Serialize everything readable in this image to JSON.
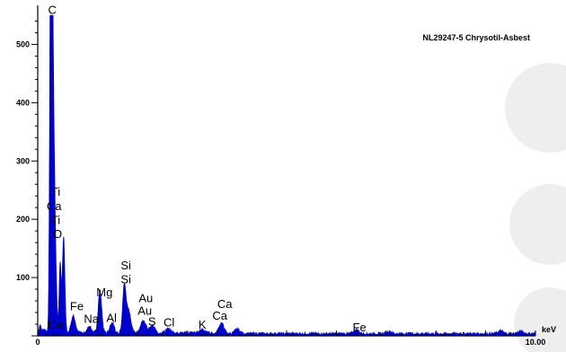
{
  "colors": {
    "spectrum": "#0000cc",
    "axis": "#000000",
    "watermark": "#eeeeee"
  },
  "chart_data": {
    "type": "area",
    "title": "NL29247-5 Chrysotil-Asbest",
    "xunit": "keV",
    "xlim": [
      0,
      10
    ],
    "ylim": [
      0,
      550
    ],
    "x_ticks": [
      {
        "value": 0,
        "label": "0"
      },
      {
        "value": 10,
        "label": "10.00"
      }
    ],
    "y_ticks": [
      100,
      200,
      300,
      400,
      500
    ],
    "y_minor_step": 20,
    "x_minor_step": 0.1,
    "peaks": [
      {
        "x": 0.05,
        "y": 14,
        "w": 0.02
      },
      {
        "x": 0.14,
        "y": 6,
        "w": 0.03
      },
      {
        "x": 0.28,
        "y": 545,
        "w": 0.025
      },
      {
        "x": 0.26,
        "y": 420,
        "w": 0.02
      },
      {
        "x": 0.3,
        "y": 180,
        "w": 0.03
      },
      {
        "x": 0.34,
        "y": 175,
        "w": 0.03
      },
      {
        "x": 0.45,
        "y": 120,
        "w": 0.02
      },
      {
        "x": 0.52,
        "y": 168,
        "w": 0.025
      },
      {
        "x": 0.71,
        "y": 30,
        "w": 0.04
      },
      {
        "x": 1.04,
        "y": 12,
        "w": 0.04
      },
      {
        "x": 1.25,
        "y": 72,
        "w": 0.035
      },
      {
        "x": 1.49,
        "y": 18,
        "w": 0.04
      },
      {
        "x": 1.74,
        "y": 82,
        "w": 0.035
      },
      {
        "x": 1.83,
        "y": 38,
        "w": 0.04
      },
      {
        "x": 2.12,
        "y": 22,
        "w": 0.05
      },
      {
        "x": 2.3,
        "y": 12,
        "w": 0.05
      },
      {
        "x": 2.62,
        "y": 6,
        "w": 0.05
      },
      {
        "x": 3.31,
        "y": 6,
        "w": 0.05
      },
      {
        "x": 3.69,
        "y": 18,
        "w": 0.05
      },
      {
        "x": 4.01,
        "y": 8,
        "w": 0.05
      },
      {
        "x": 6.4,
        "y": 7,
        "w": 0.05
      },
      {
        "x": 7.06,
        "y": 4,
        "w": 0.05
      },
      {
        "x": 9.3,
        "y": 5,
        "w": 0.05
      },
      {
        "x": 9.7,
        "y": 4,
        "w": 0.05
      }
    ],
    "background_counts": 4,
    "annotations": [
      {
        "text": "C",
        "x": 0.28,
        "y": 552
      },
      {
        "text": "Ti",
        "x": 0.34,
        "y": 240
      },
      {
        "text": "Ca",
        "x": 0.25,
        "y": 216
      },
      {
        "text": "Ti",
        "x": 0.34,
        "y": 192
      },
      {
        "text": "O",
        "x": 0.38,
        "y": 168
      },
      {
        "text": "Fe",
        "x": 0.72,
        "y": 44
      },
      {
        "text": "Ca",
        "x": 0.27,
        "y": 12
      },
      {
        "text": "Na",
        "x": 1.0,
        "y": 22
      },
      {
        "text": "Mg",
        "x": 1.25,
        "y": 68
      },
      {
        "text": "Al",
        "x": 1.45,
        "y": 24
      },
      {
        "text": "Si",
        "x": 1.74,
        "y": 114
      },
      {
        "text": "Si",
        "x": 1.74,
        "y": 90
      },
      {
        "text": "Au",
        "x": 2.1,
        "y": 58
      },
      {
        "text": "Au",
        "x": 2.08,
        "y": 36
      },
      {
        "text": "S",
        "x": 2.29,
        "y": 18
      },
      {
        "text": "Cl",
        "x": 2.6,
        "y": 16
      },
      {
        "text": "Ca",
        "x": 3.68,
        "y": 48
      },
      {
        "text": "K",
        "x": 3.3,
        "y": 12
      },
      {
        "text": "Ca",
        "x": 3.58,
        "y": 28
      },
      {
        "text": "Fe",
        "x": 6.4,
        "y": 8
      }
    ]
  }
}
